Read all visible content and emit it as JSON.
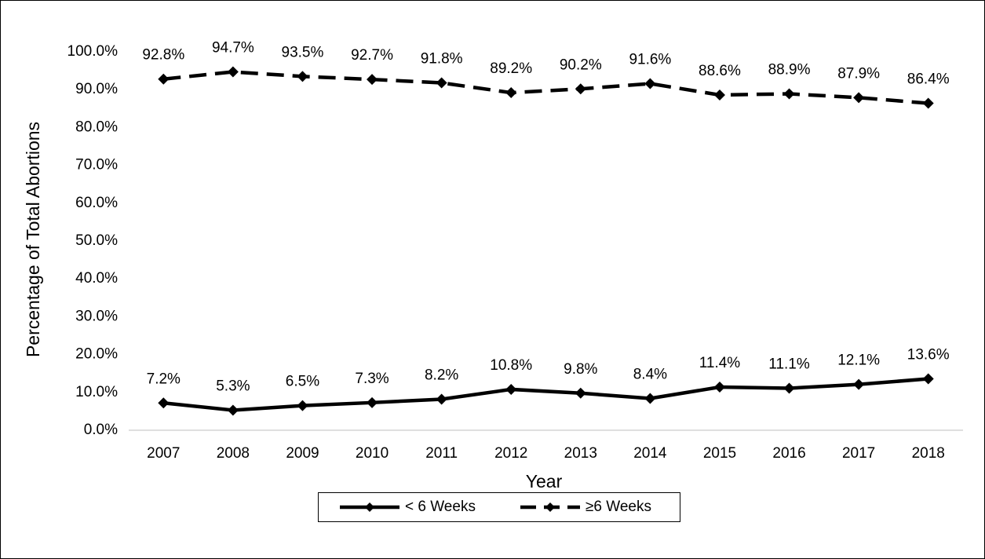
{
  "chart_data": {
    "type": "line",
    "x_label": "Year",
    "y_label": "Percentage of Total Abortions",
    "categories": [
      "2007",
      "2008",
      "2009",
      "2010",
      "2011",
      "2012",
      "2013",
      "2014",
      "2015",
      "2016",
      "2017",
      "2018"
    ],
    "series": [
      {
        "name": "< 6 Weeks",
        "color": "#000000",
        "line_style": "solid",
        "values": [
          7.2,
          5.3,
          6.5,
          7.3,
          8.2,
          10.8,
          9.8,
          8.4,
          11.4,
          11.1,
          12.1,
          13.6
        ],
        "value_labels": [
          "7.2%",
          "5.3%",
          "6.5%",
          "7.3%",
          "8.2%",
          "10.8%",
          "9.8%",
          "8.4%",
          "11.4%",
          "11.1%",
          "12.1%",
          "13.6%"
        ]
      },
      {
        "name": "≥6 Weeks",
        "color": "#000000",
        "line_style": "dashed",
        "values": [
          92.8,
          94.7,
          93.5,
          92.7,
          91.8,
          89.2,
          90.2,
          91.6,
          88.6,
          88.9,
          87.9,
          86.4
        ],
        "value_labels": [
          "92.8%",
          "94.7%",
          "93.5%",
          "92.7%",
          "91.8%",
          "89.2%",
          "90.2%",
          "91.6%",
          "88.6%",
          "88.9%",
          "87.9%",
          "86.4%"
        ]
      }
    ],
    "ylim": [
      0,
      100
    ],
    "yticks": [
      {
        "value": 0,
        "label": "0.0%"
      },
      {
        "value": 10,
        "label": "10.0%"
      },
      {
        "value": 20,
        "label": "20.0%"
      },
      {
        "value": 30,
        "label": "30.0%"
      },
      {
        "value": 40,
        "label": "40.0%"
      },
      {
        "value": 50,
        "label": "50.0%"
      },
      {
        "value": 60,
        "label": "60.0%"
      },
      {
        "value": 70,
        "label": "70.0%"
      },
      {
        "value": 80,
        "label": "80.0%"
      },
      {
        "value": 90,
        "label": "90.0%"
      },
      {
        "value": 100,
        "label": "100.0%"
      }
    ],
    "grid": false,
    "legend": "bottom"
  }
}
